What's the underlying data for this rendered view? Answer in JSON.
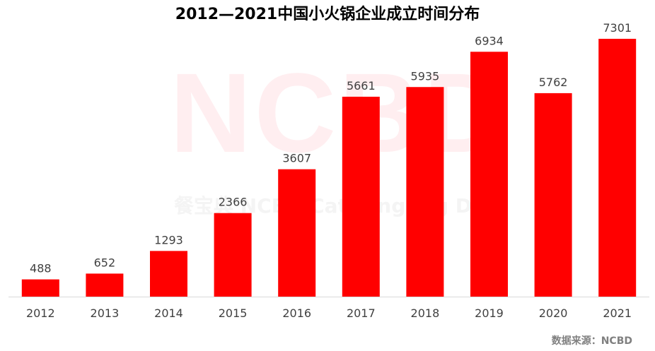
{
  "chart_data": {
    "type": "bar",
    "title": "2012—2021中国小火锅企业成立时间分布",
    "categories": [
      "2012",
      "2013",
      "2014",
      "2015",
      "2016",
      "2017",
      "2018",
      "2019",
      "2020",
      "2021"
    ],
    "values": [
      488,
      652,
      1293,
      2366,
      3607,
      5661,
      5935,
      6934,
      5762,
      7301
    ],
    "xlabel": "",
    "ylabel": "",
    "ylim": [
      0,
      8000
    ],
    "grid": false,
    "legend": "none",
    "bar_color": "#ff0000",
    "axis_color": "#d9d9d9",
    "label_color": "#404040"
  },
  "watermark": {
    "big": "NCBD",
    "small": "餐宝典  NCBD Catering Big Data"
  },
  "source": "数据来源：NCBD"
}
